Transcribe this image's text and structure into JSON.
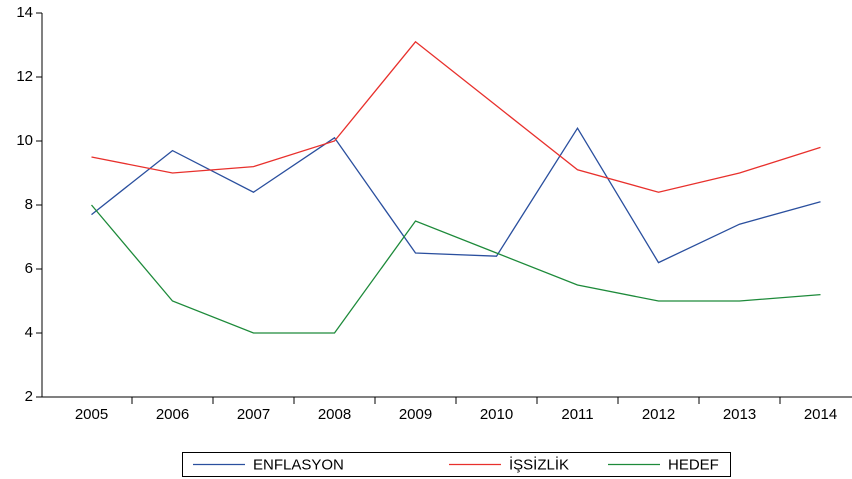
{
  "chart_data": {
    "type": "line",
    "categories": [
      "2005",
      "2006",
      "2007",
      "2008",
      "2009",
      "2010",
      "2011",
      "2012",
      "2013",
      "2014"
    ],
    "series": [
      {
        "name": "ENFLASYON",
        "color": "#2a4f9e",
        "values": [
          7.7,
          9.7,
          8.4,
          10.1,
          6.5,
          6.4,
          10.4,
          6.2,
          7.4,
          8.1
        ]
      },
      {
        "name": "İŞSİZLİK",
        "color": "#e8302c",
        "values": [
          9.5,
          9.0,
          9.2,
          10.0,
          13.1,
          11.1,
          9.1,
          8.4,
          9.0,
          9.8
        ]
      },
      {
        "name": "HEDEF",
        "color": "#1d8a3a",
        "values": [
          8.0,
          5.0,
          4.0,
          4.0,
          7.5,
          6.5,
          5.5,
          5.0,
          5.0,
          5.2
        ]
      }
    ],
    "ylim": [
      2,
      14
    ],
    "yticks": [
      2,
      4,
      6,
      8,
      10,
      12,
      14
    ],
    "grid": false,
    "legend": "bottom"
  }
}
